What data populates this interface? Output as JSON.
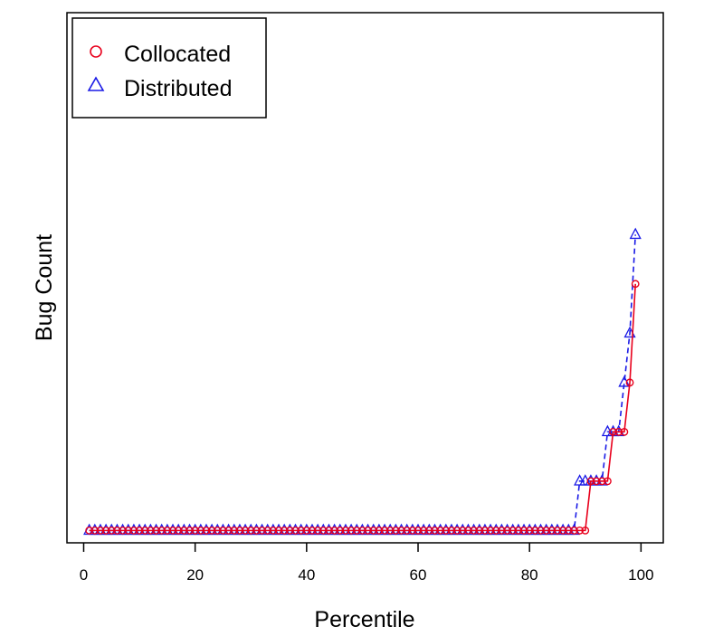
{
  "chart_data": {
    "type": "line",
    "xlabel": "Percentile",
    "ylabel": "Bug Count",
    "xlim": [
      -3,
      104
    ],
    "ylim": [
      -0.25,
      10.5
    ],
    "x_ticks": [
      0,
      20,
      40,
      60,
      80,
      100
    ],
    "y_ticks_shown": false,
    "legend_position": "top-left",
    "series": [
      {
        "name": "Collocated",
        "marker": "circle",
        "line_style": "solid",
        "color": "#e8001c",
        "x": [
          1,
          2,
          3,
          4,
          5,
          6,
          7,
          8,
          9,
          10,
          11,
          12,
          13,
          14,
          15,
          16,
          17,
          18,
          19,
          20,
          21,
          22,
          23,
          24,
          25,
          26,
          27,
          28,
          29,
          30,
          31,
          32,
          33,
          34,
          35,
          36,
          37,
          38,
          39,
          40,
          41,
          42,
          43,
          44,
          45,
          46,
          47,
          48,
          49,
          50,
          51,
          52,
          53,
          54,
          55,
          56,
          57,
          58,
          59,
          60,
          61,
          62,
          63,
          64,
          65,
          66,
          67,
          68,
          69,
          70,
          71,
          72,
          73,
          74,
          75,
          76,
          77,
          78,
          79,
          80,
          81,
          82,
          83,
          84,
          85,
          86,
          87,
          88,
          89,
          90,
          91,
          92,
          93,
          94,
          95,
          96,
          97,
          98,
          99
        ],
        "values": [
          0,
          0,
          0,
          0,
          0,
          0,
          0,
          0,
          0,
          0,
          0,
          0,
          0,
          0,
          0,
          0,
          0,
          0,
          0,
          0,
          0,
          0,
          0,
          0,
          0,
          0,
          0,
          0,
          0,
          0,
          0,
          0,
          0,
          0,
          0,
          0,
          0,
          0,
          0,
          0,
          0,
          0,
          0,
          0,
          0,
          0,
          0,
          0,
          0,
          0,
          0,
          0,
          0,
          0,
          0,
          0,
          0,
          0,
          0,
          0,
          0,
          0,
          0,
          0,
          0,
          0,
          0,
          0,
          0,
          0,
          0,
          0,
          0,
          0,
          0,
          0,
          0,
          0,
          0,
          0,
          0,
          0,
          0,
          0,
          0,
          0,
          0,
          0,
          0,
          0,
          1,
          1,
          1,
          1,
          2,
          2,
          2,
          3,
          5
        ]
      },
      {
        "name": "Distributed",
        "marker": "triangle",
        "line_style": "dashed",
        "color": "#1a1ae6",
        "x": [
          1,
          2,
          3,
          4,
          5,
          6,
          7,
          8,
          9,
          10,
          11,
          12,
          13,
          14,
          15,
          16,
          17,
          18,
          19,
          20,
          21,
          22,
          23,
          24,
          25,
          26,
          27,
          28,
          29,
          30,
          31,
          32,
          33,
          34,
          35,
          36,
          37,
          38,
          39,
          40,
          41,
          42,
          43,
          44,
          45,
          46,
          47,
          48,
          49,
          50,
          51,
          52,
          53,
          54,
          55,
          56,
          57,
          58,
          59,
          60,
          61,
          62,
          63,
          64,
          65,
          66,
          67,
          68,
          69,
          70,
          71,
          72,
          73,
          74,
          75,
          76,
          77,
          78,
          79,
          80,
          81,
          82,
          83,
          84,
          85,
          86,
          87,
          88,
          89,
          90,
          91,
          92,
          93,
          94,
          95,
          96,
          97,
          98,
          99
        ],
        "values": [
          0,
          0,
          0,
          0,
          0,
          0,
          0,
          0,
          0,
          0,
          0,
          0,
          0,
          0,
          0,
          0,
          0,
          0,
          0,
          0,
          0,
          0,
          0,
          0,
          0,
          0,
          0,
          0,
          0,
          0,
          0,
          0,
          0,
          0,
          0,
          0,
          0,
          0,
          0,
          0,
          0,
          0,
          0,
          0,
          0,
          0,
          0,
          0,
          0,
          0,
          0,
          0,
          0,
          0,
          0,
          0,
          0,
          0,
          0,
          0,
          0,
          0,
          0,
          0,
          0,
          0,
          0,
          0,
          0,
          0,
          0,
          0,
          0,
          0,
          0,
          0,
          0,
          0,
          0,
          0,
          0,
          0,
          0,
          0,
          0,
          0,
          0,
          0,
          1,
          1,
          1,
          1,
          1,
          2,
          2,
          2,
          3,
          4,
          6
        ]
      }
    ]
  }
}
